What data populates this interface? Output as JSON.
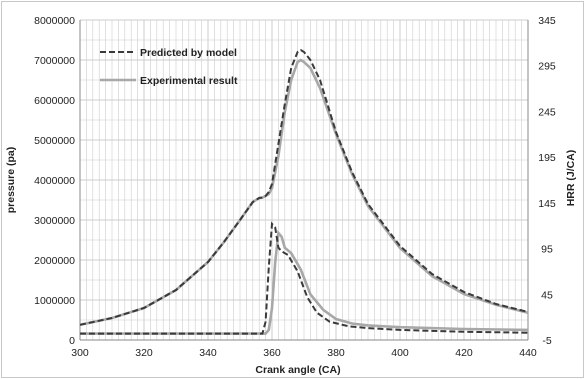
{
  "chart_data": {
    "type": "line",
    "title": "",
    "xlabel": "Crank angle (CA)",
    "ylabel": "pressure (pa)",
    "y2label": "HRR (J/CA)",
    "xlim": [
      300,
      440
    ],
    "ylim": [
      0,
      8000000
    ],
    "y2lim": [
      -5,
      345
    ],
    "xticks": [
      300,
      320,
      340,
      360,
      380,
      400,
      420,
      440
    ],
    "yticks": [
      0,
      1000000,
      2000000,
      3000000,
      4000000,
      5000000,
      6000000,
      7000000,
      8000000
    ],
    "y2ticks": [
      -5,
      45,
      95,
      145,
      195,
      245,
      295,
      345
    ],
    "grid": true,
    "legend_position": "top-left",
    "colors": {
      "predicted": "#3a3a3a",
      "experimental": "#a8a8a8",
      "grid": "#cccccc",
      "axis": "#888888"
    },
    "series": [
      {
        "name": "Predicted by model",
        "axis": "left",
        "style": "dashed",
        "x": [
          300,
          310,
          320,
          330,
          340,
          345,
          350,
          354,
          356,
          357,
          358,
          359,
          360,
          362,
          364,
          366,
          368,
          369,
          370,
          372,
          375,
          380,
          385,
          390,
          400,
          410,
          420,
          430,
          440
        ],
        "y": [
          380000,
          550000,
          800000,
          1250000,
          1950000,
          2450000,
          3000000,
          3450000,
          3550000,
          3560000,
          3600000,
          3700000,
          3900000,
          4900000,
          5900000,
          6800000,
          7200000,
          7250000,
          7200000,
          7000000,
          6500000,
          5200000,
          4200000,
          3400000,
          2350000,
          1650000,
          1200000,
          900000,
          700000
        ]
      },
      {
        "name": "Predicted by model",
        "axis": "right",
        "style": "dashed",
        "x": [
          300,
          340,
          357,
          358,
          359,
          360,
          361,
          362,
          363,
          365,
          368,
          371,
          374,
          378,
          384,
          390,
          400,
          420,
          440
        ],
        "y": [
          2,
          2,
          2,
          15,
          75,
          122,
          118,
          96,
          92,
          88,
          70,
          42,
          25,
          15,
          10,
          8,
          6,
          4,
          3
        ]
      },
      {
        "name": "Experimental result",
        "axis": "left",
        "style": "solid",
        "x": [
          300,
          310,
          320,
          330,
          340,
          345,
          350,
          354,
          356,
          357,
          358,
          359,
          360,
          362,
          364,
          366,
          368,
          369,
          370,
          372,
          375,
          380,
          385,
          390,
          400,
          410,
          420,
          430,
          440
        ],
        "y": [
          380000,
          550000,
          800000,
          1250000,
          1950000,
          2450000,
          3000000,
          3450000,
          3550000,
          3560000,
          3600000,
          3650000,
          3800000,
          4600000,
          5700000,
          6500000,
          6950000,
          7000000,
          6950000,
          6800000,
          6300000,
          5150000,
          4150000,
          3350000,
          2300000,
          1600000,
          1150000,
          880000,
          680000
        ]
      },
      {
        "name": "Experimental result",
        "axis": "right",
        "style": "solid",
        "x": [
          300,
          340,
          358,
          359,
          360,
          361,
          362,
          363,
          364,
          366,
          369,
          372,
          376,
          380,
          385,
          390,
          400,
          420,
          440
        ],
        "y": [
          2,
          2,
          2,
          6,
          30,
          80,
          112,
          108,
          96,
          90,
          72,
          45,
          28,
          18,
          13,
          11,
          9,
          7,
          6
        ]
      }
    ]
  }
}
